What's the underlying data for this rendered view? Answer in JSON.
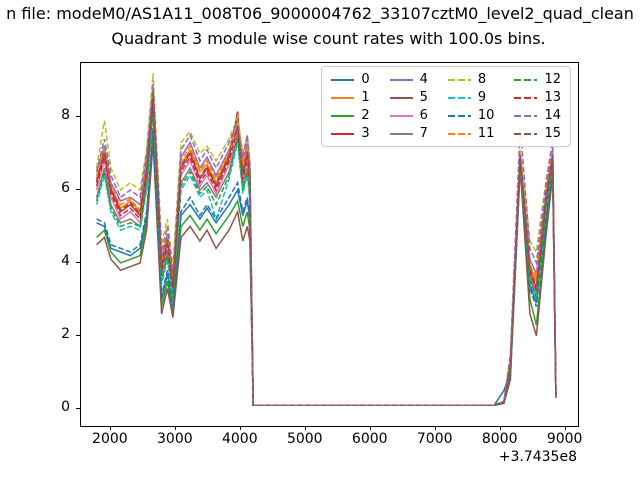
{
  "figure": {
    "title_line1": "n file: modeM0/AS1A11_008T06_9000004762_33107cztM0_level2_quad_clean",
    "title_line2": "Quadrant 3 module wise count rates with 100.0s bins."
  },
  "chart_data": {
    "type": "line",
    "title": "Quadrant 3 module wise count rates with 100.0s bins.",
    "suptitle_visible": "n file: modeM0/AS1A11_008T06_9000004762_33107cztM0_level2_quad_clean",
    "xlabel": "",
    "ylabel": "",
    "x_offset_text": "+3.7435e8",
    "xlim": [
      1540,
      9190
    ],
    "ylim": [
      -0.47,
      9.48
    ],
    "xticks": [
      2000,
      3000,
      4000,
      5000,
      6000,
      7000,
      8000,
      9000
    ],
    "yticks": [
      0,
      2,
      4,
      6,
      8
    ],
    "grid": false,
    "legend": {
      "position": "upper right",
      "ncol": 4,
      "entries": [
        "0",
        "1",
        "2",
        "3",
        "4",
        "5",
        "6",
        "7",
        "8",
        "9",
        "10",
        "11",
        "12",
        "13",
        "14",
        "15"
      ]
    },
    "x": [
      1780,
      1900,
      2000,
      2150,
      2300,
      2450,
      2550,
      2650,
      2780,
      2870,
      2955,
      3080,
      3220,
      3370,
      3480,
      3620,
      3820,
      3950,
      4030,
      4100,
      4140,
      4190,
      6000,
      7900,
      8050,
      8150,
      8300,
      8450,
      8550,
      8700,
      8800,
      8850
    ],
    "series": [
      {
        "name": "0",
        "color": "#1f77b4",
        "dash": false,
        "values": [
          5.1,
          5.0,
          4.4,
          4.3,
          4.2,
          4.4,
          5.3,
          7.6,
          3.0,
          3.7,
          2.7,
          5.3,
          5.6,
          5.2,
          5.5,
          5.1,
          5.6,
          6.0,
          5.3,
          5.7,
          5.2,
          0.1,
          0.1,
          0.1,
          0.5,
          1.0,
          6.8,
          3.4,
          2.9,
          5.3,
          6.6,
          0.35
        ]
      },
      {
        "name": "1",
        "color": "#ff7f0e",
        "dash": false,
        "values": [
          6.3,
          7.1,
          6.1,
          5.5,
          5.7,
          5.4,
          6.6,
          8.7,
          4.0,
          4.7,
          3.5,
          6.7,
          7.1,
          6.5,
          6.7,
          6.2,
          7.0,
          8.0,
          6.6,
          7.1,
          6.4,
          0.1,
          0.1,
          0.1,
          0.2,
          1.2,
          7.0,
          3.9,
          3.5,
          5.9,
          7.0,
          0.4
        ]
      },
      {
        "name": "2",
        "color": "#2ca02c",
        "dash": false,
        "values": [
          4.7,
          4.9,
          4.3,
          4.0,
          4.1,
          4.2,
          5.1,
          7.4,
          2.8,
          3.5,
          2.6,
          5.0,
          5.3,
          4.9,
          5.2,
          4.8,
          5.3,
          5.7,
          5.0,
          5.4,
          4.9,
          0.1,
          0.1,
          0.1,
          0.15,
          0.9,
          6.7,
          3.0,
          2.3,
          5.0,
          6.5,
          0.3
        ]
      },
      {
        "name": "3",
        "color": "#d62728",
        "dash": false,
        "values": [
          6.2,
          7.0,
          6.0,
          5.4,
          5.6,
          5.3,
          6.5,
          8.6,
          3.9,
          4.6,
          3.4,
          6.6,
          7.0,
          6.3,
          6.6,
          6.1,
          6.9,
          8.15,
          6.4,
          7.0,
          6.3,
          0.1,
          0.1,
          0.1,
          0.2,
          1.2,
          6.9,
          3.8,
          3.3,
          5.8,
          6.9,
          0.4
        ]
      },
      {
        "name": "4",
        "color": "#9467bd",
        "dash": false,
        "values": [
          6.5,
          7.2,
          6.2,
          5.7,
          5.8,
          5.6,
          6.8,
          8.8,
          4.1,
          4.8,
          3.6,
          6.9,
          7.3,
          6.6,
          6.9,
          6.4,
          7.1,
          7.9,
          6.7,
          7.3,
          6.6,
          0.1,
          0.1,
          0.1,
          0.2,
          1.3,
          7.0,
          4.1,
          3.7,
          6.0,
          7.1,
          0.4
        ]
      },
      {
        "name": "5",
        "color": "#8c564b",
        "dash": false,
        "values": [
          4.5,
          4.7,
          4.1,
          3.8,
          3.9,
          4.0,
          4.9,
          7.3,
          2.6,
          3.3,
          2.5,
          4.7,
          5.0,
          4.6,
          4.9,
          4.4,
          4.9,
          5.4,
          4.6,
          5.0,
          4.6,
          0.1,
          0.1,
          0.1,
          0.15,
          0.8,
          6.6,
          2.6,
          2.0,
          4.8,
          6.4,
          0.3
        ]
      },
      {
        "name": "6",
        "color": "#e377c2",
        "dash": false,
        "values": [
          6.0,
          6.8,
          5.8,
          5.2,
          5.4,
          5.1,
          6.3,
          8.4,
          3.7,
          4.4,
          3.2,
          6.4,
          6.8,
          6.1,
          6.4,
          5.9,
          6.7,
          7.6,
          6.2,
          6.8,
          6.1,
          0.1,
          0.1,
          0.1,
          0.2,
          1.1,
          6.85,
          3.7,
          3.2,
          5.7,
          6.8,
          0.4
        ]
      },
      {
        "name": "7",
        "color": "#7f7f7f",
        "dash": false,
        "values": [
          5.8,
          6.6,
          5.6,
          5.1,
          5.2,
          5.0,
          6.2,
          8.3,
          3.6,
          4.3,
          3.1,
          6.2,
          6.6,
          6.0,
          6.2,
          5.8,
          6.5,
          7.5,
          6.1,
          6.6,
          5.9,
          0.1,
          0.1,
          0.1,
          0.2,
          1.1,
          6.8,
          3.6,
          3.1,
          5.6,
          6.75,
          0.4
        ]
      },
      {
        "name": "8",
        "color": "#bcbd22",
        "dash": true,
        "values": [
          6.6,
          7.9,
          6.6,
          6.0,
          6.2,
          6.0,
          7.1,
          9.2,
          4.5,
          5.2,
          3.9,
          7.3,
          7.6,
          7.0,
          7.2,
          6.8,
          7.4,
          8.0,
          7.0,
          7.5,
          6.8,
          0.1,
          0.1,
          0.1,
          0.2,
          1.4,
          7.1,
          4.6,
          4.3,
          6.3,
          7.3,
          0.45
        ]
      },
      {
        "name": "9",
        "color": "#17becf",
        "dash": true,
        "values": [
          5.6,
          6.4,
          5.4,
          4.9,
          5.0,
          4.9,
          6.0,
          8.1,
          3.4,
          4.1,
          3.0,
          6.0,
          6.4,
          5.8,
          6.0,
          5.2,
          6.3,
          7.3,
          5.9,
          6.4,
          5.7,
          0.1,
          0.1,
          0.1,
          0.2,
          1.0,
          6.75,
          3.5,
          3.0,
          5.5,
          6.7,
          0.4
        ]
      },
      {
        "name": "10",
        "color": "#1f77b4",
        "dash": true,
        "values": [
          5.2,
          5.1,
          4.5,
          4.4,
          4.3,
          4.5,
          5.4,
          7.7,
          3.1,
          3.8,
          2.8,
          5.4,
          5.8,
          5.3,
          5.6,
          5.2,
          5.8,
          6.2,
          5.4,
          5.8,
          5.3,
          0.1,
          0.1,
          0.1,
          0.2,
          1.0,
          6.8,
          3.3,
          2.8,
          5.2,
          6.6,
          0.35
        ]
      },
      {
        "name": "11",
        "color": "#ff7f0e",
        "dash": true,
        "values": [
          6.4,
          7.15,
          6.1,
          5.6,
          5.75,
          5.45,
          6.7,
          8.75,
          4.0,
          4.75,
          3.5,
          6.8,
          7.2,
          6.55,
          6.8,
          6.3,
          7.05,
          7.85,
          6.65,
          7.2,
          6.5,
          0.1,
          0.1,
          0.1,
          0.2,
          1.2,
          7.0,
          3.95,
          3.6,
          5.95,
          7.05,
          0.4
        ]
      },
      {
        "name": "12",
        "color": "#2ca02c",
        "dash": true,
        "values": [
          5.7,
          6.5,
          5.5,
          5.0,
          5.1,
          5.0,
          6.1,
          8.2,
          3.5,
          4.2,
          3.05,
          6.1,
          6.5,
          5.9,
          6.1,
          5.6,
          6.4,
          7.4,
          6.0,
          6.5,
          5.8,
          0.1,
          0.1,
          0.1,
          0.2,
          1.05,
          6.8,
          3.55,
          3.05,
          5.55,
          6.7,
          0.4
        ]
      },
      {
        "name": "13",
        "color": "#d62728",
        "dash": true,
        "values": [
          6.1,
          6.9,
          5.9,
          5.3,
          5.5,
          5.2,
          6.4,
          8.5,
          3.8,
          4.5,
          3.3,
          6.5,
          6.9,
          6.2,
          6.5,
          6.0,
          6.8,
          7.7,
          6.3,
          6.9,
          6.2,
          0.1,
          0.1,
          0.1,
          0.2,
          1.15,
          6.9,
          3.75,
          3.25,
          5.75,
          6.85,
          0.4
        ]
      },
      {
        "name": "14",
        "color": "#9467bd",
        "dash": true,
        "values": [
          6.5,
          7.4,
          6.4,
          5.8,
          6.0,
          5.8,
          7.0,
          8.9,
          4.3,
          5.0,
          3.7,
          7.1,
          7.5,
          6.8,
          7.1,
          6.6,
          7.3,
          7.9,
          6.9,
          7.5,
          6.7,
          0.1,
          0.1,
          0.1,
          0.2,
          1.5,
          7.75,
          4.4,
          4.0,
          6.2,
          7.4,
          0.45
        ]
      },
      {
        "name": "15",
        "color": "#8c564b",
        "dash": true,
        "values": [
          6.25,
          7.05,
          6.05,
          5.45,
          5.65,
          5.35,
          6.55,
          8.65,
          3.95,
          4.65,
          3.45,
          6.65,
          7.05,
          6.35,
          6.65,
          6.15,
          6.95,
          7.75,
          6.45,
          7.05,
          6.35,
          0.1,
          0.1,
          0.1,
          0.2,
          1.2,
          6.95,
          3.85,
          3.35,
          5.85,
          6.95,
          0.4
        ]
      }
    ]
  }
}
